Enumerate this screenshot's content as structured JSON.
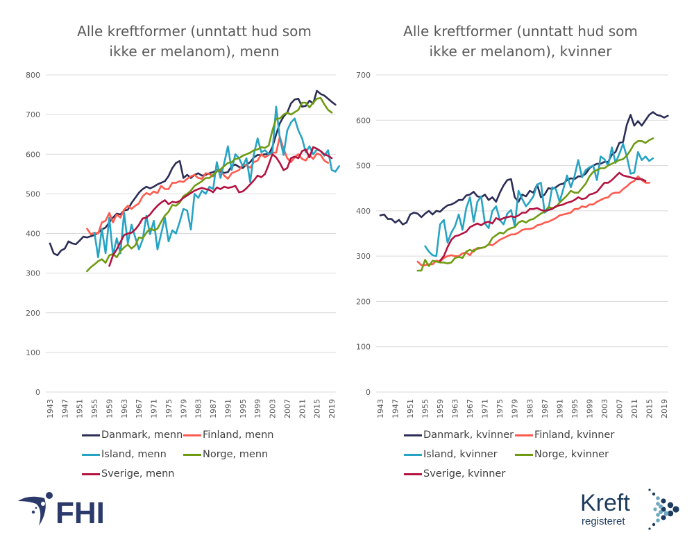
{
  "chart_data": [
    {
      "type": "line",
      "title": "Alle kreftformer (unntatt hud som ikke er melanom), menn",
      "title_lines": [
        "Alle kreftformer (unntatt hud som",
        "ikke er melanom), menn"
      ],
      "xlabel": "",
      "ylabel": "",
      "ylim": [
        0,
        800
      ],
      "yticks": [
        0,
        100,
        200,
        300,
        400,
        500,
        600,
        700,
        800
      ],
      "xlim": [
        1943,
        2019
      ],
      "xticks": [
        "1943",
        "1947",
        "1951",
        "1955",
        "1959",
        "1963",
        "1967",
        "1971",
        "1975",
        "1979",
        "1983",
        "1987",
        "1991",
        "1995",
        "1999",
        "2003",
        "2007",
        "2011",
        "2015",
        "2019"
      ],
      "grid": true,
      "legend_position": "bottom",
      "series": [
        {
          "name": "Danmark, menn",
          "color": "#2b2d55",
          "start": 1943,
          "values": [
            375,
            350,
            345,
            357,
            362,
            380,
            375,
            373,
            382,
            392,
            390,
            393,
            396,
            402,
            410,
            415,
            428,
            440,
            450,
            448,
            458,
            460,
            477,
            490,
            503,
            512,
            518,
            514,
            518,
            524,
            528,
            532,
            545,
            565,
            578,
            583,
            540,
            548,
            540,
            548,
            552,
            546,
            548,
            552,
            555,
            560,
            556,
            553,
            555,
            570,
            574,
            568,
            565,
            574,
            580,
            592,
            598,
            598,
            600,
            600,
            618,
            650,
            678,
            695,
            705,
            728,
            738,
            740,
            720,
            722,
            735,
            728,
            760,
            752,
            748,
            740,
            732,
            725
          ]
        },
        {
          "name": "Finland, menn",
          "color": "#ff5a4e",
          "start": 1953,
          "values": [
            412,
            398,
            402,
            400,
            428,
            432,
            452,
            428,
            448,
            440,
            460,
            470,
            462,
            470,
            476,
            494,
            502,
            498,
            506,
            502,
            520,
            512,
            512,
            528,
            528,
            532,
            530,
            538,
            544,
            548,
            540,
            538,
            552,
            550,
            544,
            558,
            560,
            546,
            538,
            552,
            556,
            560,
            574,
            572,
            566,
            580,
            584,
            600,
            592,
            598,
            604,
            604,
            644,
            614,
            590,
            580,
            592,
            600,
            588,
            584,
            598,
            588,
            602,
            598,
            584,
            578
          ]
        },
        {
          "name": "Island, menn",
          "color": "#27a3c4",
          "start": 1955,
          "values": [
            402,
            340,
            412,
            350,
            440,
            345,
            388,
            350,
            452,
            375,
            422,
            390,
            360,
            385,
            445,
            398,
            432,
            360,
            400,
            440,
            380,
            408,
            400,
            430,
            462,
            458,
            410,
            500,
            490,
            508,
            500,
            518,
            512,
            580,
            540,
            578,
            620,
            560,
            600,
            590,
            570,
            590,
            530,
            600,
            640,
            605,
            610,
            600,
            605,
            720,
            640,
            598,
            660,
            680,
            690,
            660,
            640,
            605,
            620,
            600,
            612,
            608,
            596,
            610,
            560,
            556,
            570
          ]
        },
        {
          "name": "Norge, menn",
          "color": "#6e9b12",
          "start": 1953,
          "values": [
            305,
            315,
            322,
            330,
            335,
            326,
            345,
            348,
            340,
            355,
            365,
            372,
            362,
            370,
            390,
            388,
            402,
            412,
            408,
            412,
            430,
            445,
            455,
            472,
            470,
            478,
            494,
            500,
            508,
            520,
            526,
            532,
            540,
            540,
            548,
            556,
            562,
            570,
            578,
            580,
            588,
            590,
            596,
            600,
            604,
            610,
            612,
            618,
            616,
            622,
            660,
            690,
            690,
            700,
            705,
            700,
            706,
            712,
            730,
            730,
            718,
            730,
            740,
            742,
            726,
            712,
            705
          ]
        },
        {
          "name": "Sverige, menn",
          "color": "#b3123f",
          "start": 1959,
          "values": [
            318,
            345,
            360,
            378,
            396,
            400,
            402,
            410,
            422,
            438,
            440,
            448,
            460,
            470,
            478,
            484,
            474,
            480,
            478,
            482,
            490,
            496,
            502,
            508,
            512,
            515,
            512,
            510,
            504,
            516,
            512,
            518,
            515,
            517,
            520,
            504,
            506,
            514,
            524,
            534,
            546,
            542,
            550,
            574,
            600,
            592,
            578,
            560,
            565,
            590,
            594,
            590,
            608,
            612,
            592,
            618,
            614,
            608,
            600,
            596,
            590
          ]
        }
      ]
    },
    {
      "type": "line",
      "title": "Alle kreftformer (unntatt hud som ikke er melanom), kvinner",
      "title_lines": [
        "Alle kreftformer (unntatt hud som",
        "ikke er melanom), kvinner"
      ],
      "xlabel": "",
      "ylabel": "",
      "ylim": [
        0,
        700
      ],
      "yticks": [
        0,
        100,
        200,
        300,
        400,
        500,
        600,
        700
      ],
      "xlim": [
        1943,
        2019
      ],
      "xticks": [
        "1943",
        "1947",
        "1951",
        "1955",
        "1959",
        "1963",
        "1967",
        "1971",
        "1975",
        "1979",
        "1983",
        "1987",
        "1991",
        "1995",
        "1999",
        "2003",
        "2007",
        "2011",
        "2015",
        "2019"
      ],
      "grid": true,
      "legend_position": "bottom",
      "series": [
        {
          "name": "Danmark, kvinner",
          "color": "#2b2d55",
          "start": 1943,
          "values": [
            390,
            392,
            382,
            382,
            374,
            380,
            370,
            374,
            392,
            396,
            394,
            386,
            394,
            400,
            392,
            400,
            398,
            406,
            412,
            414,
            418,
            424,
            424,
            434,
            436,
            442,
            432,
            430,
            436,
            424,
            430,
            420,
            440,
            456,
            468,
            470,
            430,
            420,
            436,
            432,
            444,
            440,
            458,
            430,
            436,
            450,
            448,
            452,
            458,
            460,
            468,
            472,
            470,
            476,
            476,
            482,
            494,
            500,
            504,
            504,
            508,
            508,
            524,
            530,
            550,
            552,
            590,
            612,
            588,
            598,
            588,
            600,
            612,
            618,
            612,
            610,
            606,
            610
          ]
        },
        {
          "name": "Finland, kvinner",
          "color": "#ff5a4e",
          "start": 1953,
          "values": [
            288,
            280,
            280,
            282,
            282,
            290,
            288,
            296,
            300,
            302,
            300,
            300,
            306,
            308,
            302,
            314,
            316,
            318,
            320,
            326,
            324,
            330,
            336,
            340,
            344,
            348,
            348,
            352,
            358,
            360,
            360,
            362,
            368,
            370,
            374,
            376,
            380,
            384,
            390,
            392,
            394,
            396,
            404,
            404,
            410,
            408,
            414,
            414,
            420,
            424,
            428,
            430,
            438,
            440,
            440,
            448,
            454,
            462,
            466,
            476,
            468,
            462,
            462
          ]
        },
        {
          "name": "Island, kvinner",
          "color": "#27a3c4",
          "start": 1955,
          "values": [
            322,
            310,
            302,
            300,
            370,
            380,
            330,
            352,
            366,
            392,
            358,
            406,
            430,
            376,
            420,
            432,
            372,
            362,
            400,
            410,
            380,
            370,
            394,
            402,
            366,
            444,
            426,
            410,
            420,
            432,
            458,
            462,
            396,
            402,
            452,
            448,
            420,
            448,
            478,
            452,
            476,
            512,
            474,
            490,
            496,
            500,
            468,
            520,
            514,
            500,
            540,
            506,
            526,
            548,
            520,
            482,
            484,
            530,
            512,
            520,
            510,
            516
          ]
        },
        {
          "name": "Norge, kvinner",
          "color": "#6e9b12",
          "start": 1953,
          "values": [
            268,
            268,
            292,
            278,
            290,
            288,
            286,
            286,
            284,
            286,
            296,
            298,
            296,
            310,
            314,
            310,
            318,
            318,
            320,
            326,
            340,
            346,
            352,
            350,
            358,
            362,
            364,
            374,
            378,
            374,
            380,
            382,
            388,
            394,
            398,
            408,
            406,
            408,
            418,
            426,
            434,
            444,
            440,
            440,
            450,
            460,
            476,
            486,
            490,
            494,
            494,
            500,
            504,
            508,
            512,
            514,
            522,
            534,
            548,
            554,
            554,
            550,
            556,
            560
          ]
        },
        {
          "name": "Sverige, kvinner",
          "color": "#b3123f",
          "start": 1959,
          "values": [
            290,
            300,
            320,
            336,
            344,
            346,
            350,
            354,
            364,
            368,
            372,
            368,
            374,
            376,
            372,
            384,
            380,
            384,
            386,
            388,
            386,
            390,
            396,
            396,
            404,
            404,
            406,
            402,
            400,
            402,
            404,
            410,
            412,
            414,
            418,
            420,
            424,
            430,
            426,
            428,
            436,
            438,
            442,
            452,
            462,
            462,
            468,
            476,
            484,
            478,
            476,
            474,
            472,
            470,
            470,
            466
          ]
        }
      ]
    }
  ],
  "logos": {
    "fhi_text": "FHI",
    "kreft_main": "Kreft",
    "kreft_sub": "registeret"
  }
}
